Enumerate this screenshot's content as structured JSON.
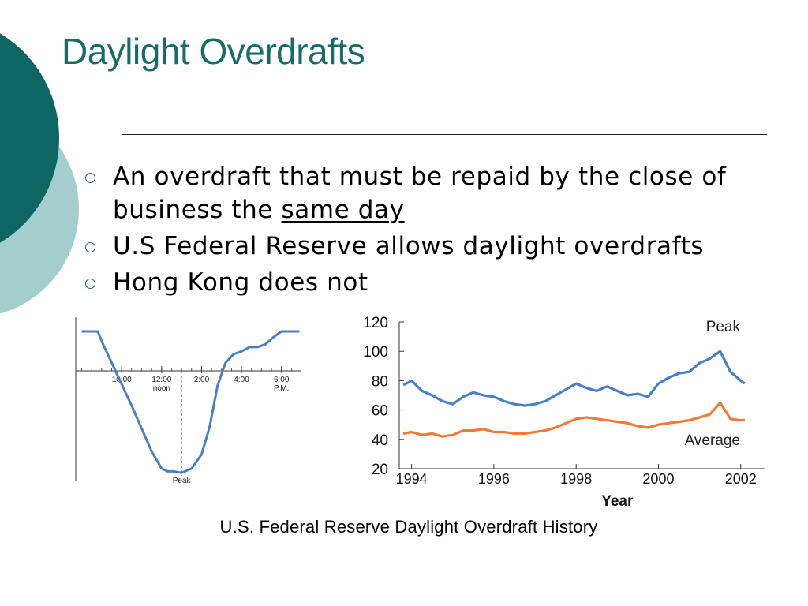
{
  "slide": {
    "title": "Daylight Overdrafts",
    "caption": "U.S. Federal Reserve Daylight Overdraft History",
    "colors": {
      "title": "#1a6b68",
      "dark_teal": "#0d6661",
      "light_teal": "#a4cece",
      "series_blue": "#4a7fc2",
      "series_orange": "#f07a3a"
    }
  },
  "bullets": [
    {
      "text": "An overdraft that must be repaid by the close of business the ",
      "underlined": "same day"
    },
    {
      "text": "U.S Federal Reserve allows daylight overdrafts"
    },
    {
      "text": "Hong Kong does not"
    }
  ],
  "chart_data": [
    {
      "type": "line",
      "x_ticks": [
        {
          "label": "10:00",
          "hour": 10
        },
        {
          "label": "12:00",
          "label2": "noon",
          "hour": 12
        },
        {
          "label": "2:00",
          "hour": 14
        },
        {
          "label": "4:00",
          "hour": 16
        },
        {
          "label": "6:00",
          "label2": "P.M.",
          "hour": 18
        }
      ],
      "xlim": [
        7.7,
        19.0
      ],
      "ylim": [
        0,
        1
      ],
      "peak_label": "Peak",
      "peak_hour": 13.0,
      "x": [
        8.0,
        8.8,
        9.1,
        9.5,
        10.0,
        10.5,
        11.0,
        11.5,
        12.0,
        12.3,
        12.6,
        13.0,
        13.5,
        14.0,
        14.4,
        14.8,
        15.2,
        15.6,
        16.0,
        16.4,
        16.8,
        17.2,
        17.6,
        18.0,
        18.4,
        18.9
      ],
      "values": [
        1.0,
        1.0,
        0.9,
        0.78,
        0.63,
        0.48,
        0.32,
        0.16,
        0.04,
        0.02,
        0.02,
        0.01,
        0.04,
        0.14,
        0.33,
        0.62,
        0.78,
        0.84,
        0.86,
        0.89,
        0.89,
        0.91,
        0.96,
        1.0,
        1.0,
        1.0
      ]
    },
    {
      "type": "line",
      "xlabel": "Year",
      "xlim": [
        1993.7,
        2002.6
      ],
      "ylim": [
        20,
        120
      ],
      "y_ticks": [
        20,
        40,
        60,
        80,
        100,
        120
      ],
      "x_ticks": [
        1994,
        1996,
        1998,
        2000,
        2002
      ],
      "annotations": [
        "Peak",
        "Average"
      ],
      "series": [
        {
          "name": "Peak",
          "x": [
            1993.8,
            1994.0,
            1994.25,
            1994.5,
            1994.75,
            1995.0,
            1995.25,
            1995.5,
            1995.75,
            1996.0,
            1996.25,
            1996.5,
            1996.75,
            1997.0,
            1997.25,
            1997.5,
            1997.75,
            1998.0,
            1998.25,
            1998.5,
            1998.75,
            1999.0,
            1999.25,
            1999.5,
            1999.75,
            2000.0,
            2000.25,
            2000.5,
            2000.75,
            2001.0,
            2001.25,
            2001.5,
            2001.75,
            2002.0,
            2002.1
          ],
          "values": [
            77,
            80,
            73,
            70,
            66,
            64,
            69,
            72,
            70,
            69,
            66,
            64,
            63,
            64,
            66,
            70,
            74,
            78,
            75,
            73,
            76,
            73,
            70,
            71,
            69,
            78,
            82,
            85,
            86,
            92,
            95,
            100,
            86,
            80,
            78
          ]
        },
        {
          "name": "Average",
          "x": [
            1993.8,
            1994.0,
            1994.25,
            1994.5,
            1994.75,
            1995.0,
            1995.25,
            1995.5,
            1995.75,
            1996.0,
            1996.25,
            1996.5,
            1996.75,
            1997.0,
            1997.25,
            1997.5,
            1997.75,
            1998.0,
            1998.25,
            1998.5,
            1998.75,
            1999.0,
            1999.25,
            1999.5,
            1999.75,
            2000.0,
            2000.25,
            2000.5,
            2000.75,
            2001.0,
            2001.25,
            2001.5,
            2001.75,
            2002.0,
            2002.1
          ],
          "values": [
            44,
            45,
            43,
            44,
            42,
            43,
            46,
            46,
            47,
            45,
            45,
            44,
            44,
            45,
            46,
            48,
            51,
            54,
            55,
            54,
            53,
            52,
            51,
            49,
            48,
            50,
            51,
            52,
            53,
            55,
            57,
            65,
            54,
            53,
            53
          ]
        }
      ]
    }
  ]
}
